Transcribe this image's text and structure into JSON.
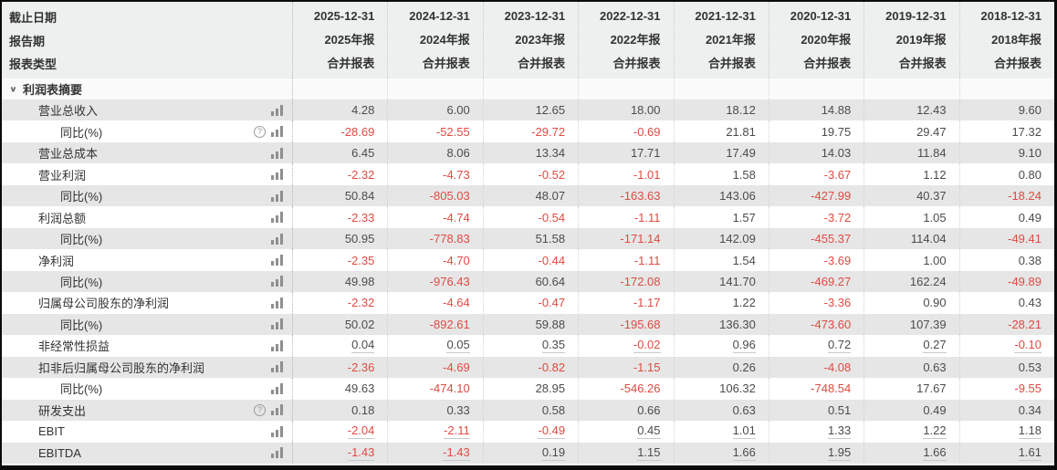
{
  "colors": {
    "negative_text": "#de4b42",
    "value_text": "#4c4c4c",
    "label_text": "#333333",
    "header_bg": "#eef0f0",
    "row_stripe_bg": "#e6e6e6",
    "row_bg": "#ffffff",
    "section_bg": "#fafafa",
    "divider_dotted": "#c9c9c9",
    "window_border": "#0b0b0b",
    "icon_gray": "#8f8f8f"
  },
  "header": {
    "field_labels": [
      "截止日期",
      "报告期",
      "报表类型"
    ],
    "columns": [
      {
        "date": "2025-12-31",
        "period": "2025年报",
        "report_type": "合并报表"
      },
      {
        "date": "2024-12-31",
        "period": "2024年报",
        "report_type": "合并报表"
      },
      {
        "date": "2023-12-31",
        "period": "2023年报",
        "report_type": "合并报表"
      },
      {
        "date": "2022-12-31",
        "period": "2022年报",
        "report_type": "合并报表"
      },
      {
        "date": "2021-12-31",
        "period": "2021年报",
        "report_type": "合并报表"
      },
      {
        "date": "2020-12-31",
        "period": "2020年报",
        "report_type": "合并报表"
      },
      {
        "date": "2019-12-31",
        "period": "2019年报",
        "report_type": "合并报表"
      },
      {
        "date": "2018-12-31",
        "period": "2018年报",
        "report_type": "合并报表"
      }
    ]
  },
  "section": {
    "title": "利润表摘要",
    "collapse_icon": "∨"
  },
  "icons": {
    "chart_icon_name": "bar-chart-icon",
    "help_icon_glyph": "?"
  },
  "rows": [
    {
      "label": "营业总收入",
      "indent": 1,
      "has_help": false,
      "underline": false,
      "values": [
        "4.28",
        "6.00",
        "12.65",
        "18.00",
        "18.12",
        "14.88",
        "12.43",
        "9.60"
      ]
    },
    {
      "label": "同比(%)",
      "indent": 2,
      "has_help": true,
      "underline": false,
      "values": [
        "-28.69",
        "-52.55",
        "-29.72",
        "-0.69",
        "21.81",
        "19.75",
        "29.47",
        "17.32"
      ]
    },
    {
      "label": "营业总成本",
      "indent": 1,
      "has_help": false,
      "underline": false,
      "values": [
        "6.45",
        "8.06",
        "13.34",
        "17.71",
        "17.49",
        "14.03",
        "11.84",
        "9.10"
      ]
    },
    {
      "label": "营业利润",
      "indent": 1,
      "has_help": false,
      "underline": false,
      "values": [
        "-2.32",
        "-4.73",
        "-0.52",
        "-1.01",
        "1.58",
        "-3.67",
        "1.12",
        "0.80"
      ]
    },
    {
      "label": "同比(%)",
      "indent": 2,
      "has_help": false,
      "underline": false,
      "values": [
        "50.84",
        "-805.03",
        "48.07",
        "-163.63",
        "143.06",
        "-427.99",
        "40.37",
        "-18.24"
      ]
    },
    {
      "label": "利润总额",
      "indent": 1,
      "has_help": false,
      "underline": false,
      "values": [
        "-2.33",
        "-4.74",
        "-0.54",
        "-1.11",
        "1.57",
        "-3.72",
        "1.05",
        "0.49"
      ]
    },
    {
      "label": "同比(%)",
      "indent": 2,
      "has_help": false,
      "underline": false,
      "values": [
        "50.95",
        "-778.83",
        "51.58",
        "-171.14",
        "142.09",
        "-455.37",
        "114.04",
        "-49.41"
      ]
    },
    {
      "label": "净利润",
      "indent": 1,
      "has_help": false,
      "underline": false,
      "values": [
        "-2.35",
        "-4.70",
        "-0.44",
        "-1.11",
        "1.54",
        "-3.69",
        "1.00",
        "0.38"
      ]
    },
    {
      "label": "同比(%)",
      "indent": 2,
      "has_help": false,
      "underline": false,
      "values": [
        "49.98",
        "-976.43",
        "60.64",
        "-172.08",
        "141.70",
        "-469.27",
        "162.24",
        "-49.89"
      ]
    },
    {
      "label": "归属母公司股东的净利润",
      "indent": 1,
      "has_help": false,
      "underline": false,
      "values": [
        "-2.32",
        "-4.64",
        "-0.47",
        "-1.17",
        "1.22",
        "-3.36",
        "0.90",
        "0.43"
      ]
    },
    {
      "label": "同比(%)",
      "indent": 2,
      "has_help": false,
      "underline": false,
      "values": [
        "50.02",
        "-892.61",
        "59.88",
        "-195.68",
        "136.30",
        "-473.60",
        "107.39",
        "-28.21"
      ]
    },
    {
      "label": "非经常性损益",
      "indent": 1,
      "has_help": false,
      "underline": true,
      "values": [
        "0.04",
        "0.05",
        "0.35",
        "-0.02",
        "0.96",
        "0.72",
        "0.27",
        "-0.10"
      ]
    },
    {
      "label": "扣非后归属母公司股东的净利润",
      "indent": 1,
      "has_help": false,
      "underline": false,
      "values": [
        "-2.36",
        "-4.69",
        "-0.82",
        "-1.15",
        "0.26",
        "-4.08",
        "0.63",
        "0.53"
      ]
    },
    {
      "label": "同比(%)",
      "indent": 2,
      "has_help": false,
      "underline": false,
      "values": [
        "49.63",
        "-474.10",
        "28.95",
        "-546.26",
        "106.32",
        "-748.54",
        "17.67",
        "-9.55"
      ]
    },
    {
      "label": "研发支出",
      "indent": 1,
      "has_help": true,
      "underline": false,
      "values": [
        "0.18",
        "0.33",
        "0.58",
        "0.66",
        "0.63",
        "0.51",
        "0.49",
        "0.34"
      ]
    },
    {
      "label": "EBIT",
      "indent": 1,
      "has_help": false,
      "underline": true,
      "values": [
        "-2.04",
        "-2.11",
        "-0.49",
        "0.45",
        "1.01",
        "1.33",
        "1.22",
        "1.18"
      ]
    },
    {
      "label": "EBITDA",
      "indent": 1,
      "has_help": false,
      "underline": true,
      "values": [
        "-1.43",
        "-1.43",
        "0.19",
        "1.15",
        "1.66",
        "1.95",
        "1.66",
        "1.61"
      ]
    }
  ]
}
